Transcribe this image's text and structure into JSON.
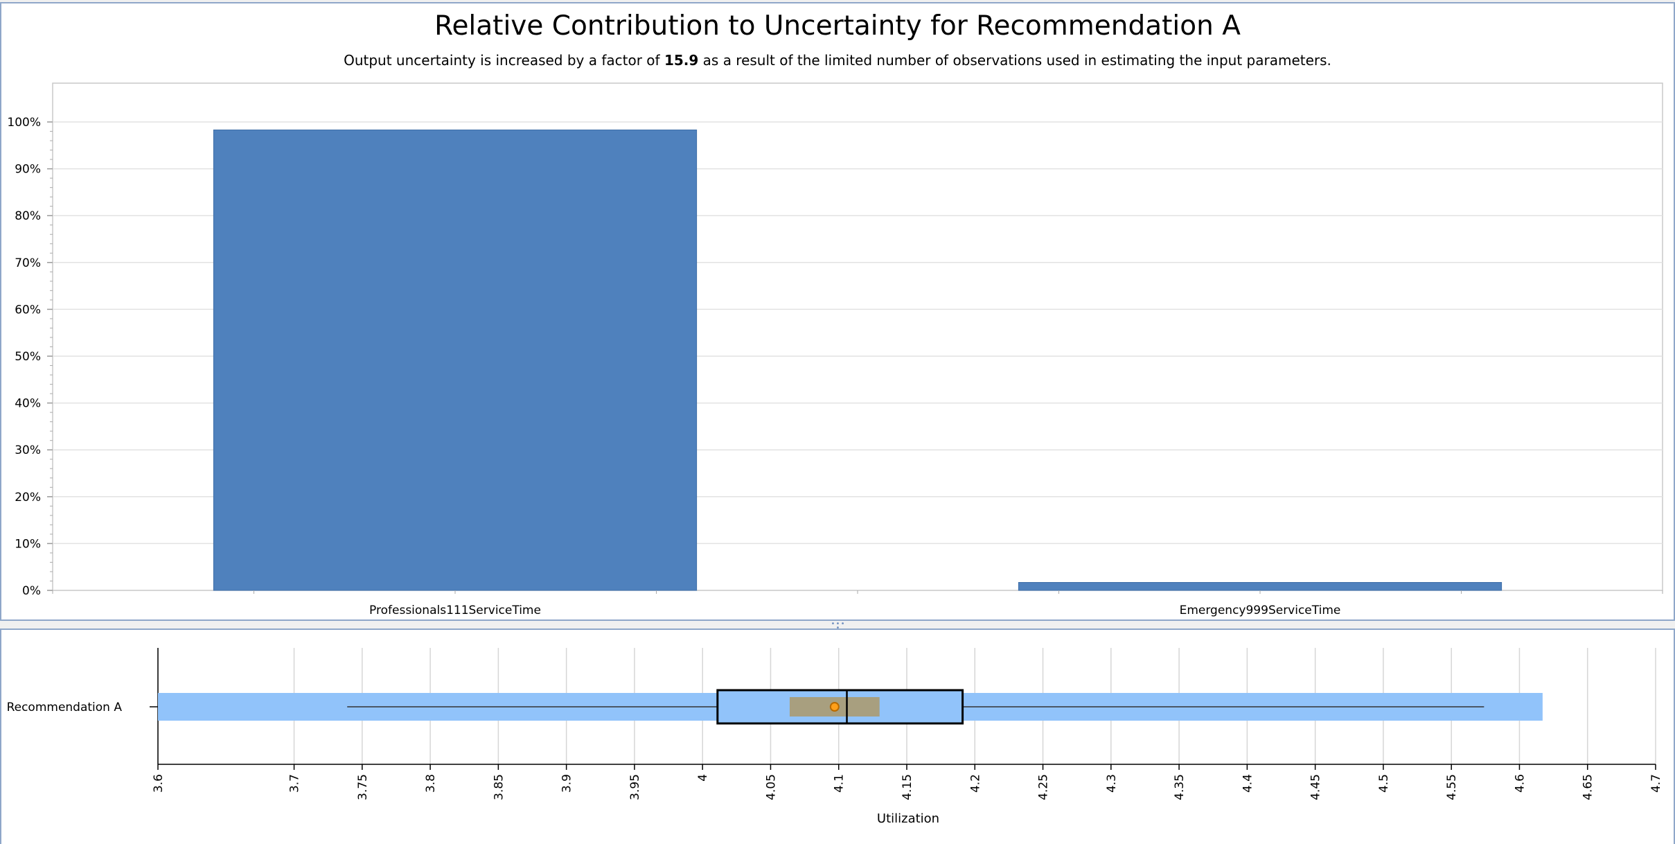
{
  "chart_data": [
    {
      "type": "bar",
      "title": "Relative Contribution to Uncertainty for Recommendation A",
      "subtitle": {
        "prefix": "Output uncertainty is increased by a factor of",
        "factor": "15.9",
        "suffix": "as a result of the limited number of observations used in estimating the input parameters."
      },
      "categories": [
        "Professionals111ServiceTime",
        "Emergency999ServiceTime"
      ],
      "values": [
        98.3,
        1.7
      ],
      "ylim": [
        0,
        100
      ],
      "yticks": [
        "0%",
        "10%",
        "20%",
        "30%",
        "40%",
        "50%",
        "60%",
        "70%",
        "80%",
        "90%",
        "100%"
      ],
      "grid": true,
      "bar_color": "#4f81bd"
    },
    {
      "type": "boxplot",
      "orientation": "horizontal",
      "category": "Recommendation A",
      "xlabel": "Utilization",
      "xlim": [
        3.6,
        4.7
      ],
      "xticks": [
        "3.6",
        "3.7",
        "3.75",
        "3.8",
        "3.85",
        "3.9",
        "3.95",
        "4",
        "4.05",
        "4.1",
        "4.15",
        "4.2",
        "4.25",
        "4.3",
        "4.35",
        "4.4",
        "4.45",
        "4.5",
        "4.55",
        "4.6",
        "4.65",
        "4.7"
      ],
      "range": [
        3.6,
        4.617
      ],
      "whisker_low": 3.739,
      "whisker_high": 4.574,
      "q1": 4.011,
      "median": 4.106,
      "q3": 4.191,
      "mean": 4.097,
      "mean_ci": [
        4.064,
        4.13
      ],
      "grid": true,
      "colors": {
        "range_band": "#91c3fa",
        "box_fill": "#91c3fa",
        "ci_fill": "#a89f7f",
        "mean_marker": "#ff9f1a"
      }
    }
  ]
}
